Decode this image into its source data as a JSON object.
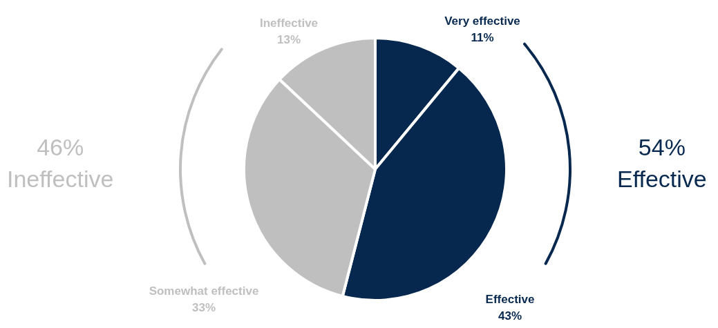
{
  "chart_data": {
    "type": "pie",
    "categories": [
      "Very effective",
      "Effective",
      "Somewhat effective",
      "Ineffective"
    ],
    "values": [
      11,
      43,
      33,
      13
    ],
    "colors": [
      "#06284f",
      "#06284f",
      "#bfbfbf",
      "#bfbfbf"
    ],
    "value_labels": [
      "11%",
      "43%",
      "33%",
      "13%"
    ],
    "legend": false,
    "annotations": [
      "54%\nEffective",
      "46%\nIneffective"
    ]
  }
}
